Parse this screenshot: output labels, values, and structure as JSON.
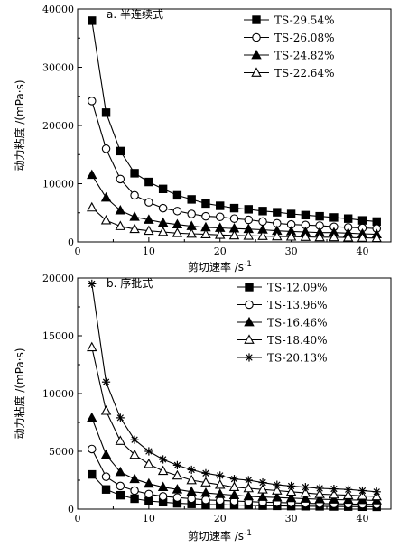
{
  "chart_data": [
    {
      "type": "line",
      "title": "a. 半连续式",
      "xlabel": "剪切速率 /s",
      "xlabel_sup": "-1",
      "ylabel": "动力粘度 /(mPa·s)",
      "xlim": [
        0,
        44
      ],
      "ylim": [
        0,
        40000
      ],
      "xticks": [
        0,
        10,
        20,
        30,
        40
      ],
      "yticks": [
        0,
        10000,
        20000,
        30000,
        40000
      ],
      "legend_position": "top-right",
      "series": [
        {
          "name": "TS-29.54%",
          "marker": "square-filled",
          "x": [
            2,
            4,
            6,
            8,
            10,
            12,
            14,
            16,
            18,
            20,
            22,
            24,
            26,
            28,
            30,
            32,
            34,
            36,
            38,
            40,
            42
          ],
          "y": [
            38000,
            22200,
            15600,
            11800,
            10300,
            9100,
            8000,
            7300,
            6600,
            6200,
            5800,
            5600,
            5300,
            5100,
            4800,
            4600,
            4400,
            4200,
            4000,
            3700,
            3500
          ]
        },
        {
          "name": "TS-26.08%",
          "marker": "circle-open",
          "x": [
            2,
            4,
            6,
            8,
            10,
            12,
            14,
            16,
            18,
            20,
            22,
            24,
            26,
            28,
            30,
            32,
            34,
            36,
            38,
            40,
            42
          ],
          "y": [
            24200,
            16000,
            10800,
            8000,
            6800,
            5800,
            5300,
            4800,
            4400,
            4300,
            4000,
            3800,
            3500,
            3200,
            3000,
            2900,
            2800,
            2600,
            2500,
            2400,
            2300
          ]
        },
        {
          "name": "TS-24.82%",
          "marker": "triangle-filled",
          "x": [
            2,
            4,
            6,
            8,
            10,
            12,
            14,
            16,
            18,
            20,
            22,
            24,
            26,
            28,
            30,
            32,
            34,
            36,
            38,
            40,
            42
          ],
          "y": [
            11500,
            7600,
            5400,
            4300,
            3800,
            3300,
            3000,
            2700,
            2500,
            2400,
            2300,
            2200,
            2100,
            1900,
            1800,
            1700,
            1600,
            1600,
            1500,
            1400,
            1300
          ]
        },
        {
          "name": "TS-22.64%",
          "marker": "triangle-open",
          "x": [
            2,
            4,
            6,
            8,
            10,
            12,
            14,
            16,
            18,
            20,
            22,
            24,
            26,
            28,
            30,
            32,
            34,
            36,
            38,
            40,
            42
          ],
          "y": [
            5900,
            3700,
            2700,
            2200,
            1900,
            1700,
            1500,
            1400,
            1300,
            1200,
            1100,
            1050,
            1000,
            950,
            900,
            850,
            800,
            800,
            750,
            700,
            650
          ]
        }
      ]
    },
    {
      "type": "line",
      "title": "b. 序批式",
      "xlabel": "剪切速率 /s",
      "xlabel_sup": "-1",
      "ylabel": "动力粘度 /(mPa·s)",
      "xlim": [
        0,
        44
      ],
      "ylim": [
        0,
        20000
      ],
      "xticks": [
        0,
        10,
        20,
        30,
        40
      ],
      "yticks": [
        0,
        5000,
        10000,
        15000,
        20000
      ],
      "legend_position": "top-right",
      "series": [
        {
          "name": "TS-12.09%",
          "marker": "square-filled",
          "x": [
            2,
            4,
            6,
            8,
            10,
            12,
            14,
            16,
            18,
            20,
            22,
            24,
            26,
            28,
            30,
            32,
            34,
            36,
            38,
            40,
            42
          ],
          "y": [
            3000,
            1700,
            1200,
            900,
            700,
            600,
            500,
            450,
            400,
            380,
            350,
            330,
            300,
            280,
            260,
            250,
            240,
            230,
            220,
            210,
            200
          ]
        },
        {
          "name": "TS-13.96%",
          "marker": "circle-open",
          "x": [
            2,
            4,
            6,
            8,
            10,
            12,
            14,
            16,
            18,
            20,
            22,
            24,
            26,
            28,
            30,
            32,
            34,
            36,
            38,
            40,
            42
          ],
          "y": [
            5200,
            2800,
            2000,
            1600,
            1300,
            1100,
            1000,
            900,
            800,
            750,
            700,
            650,
            600,
            570,
            540,
            500,
            480,
            460,
            440,
            420,
            400
          ]
        },
        {
          "name": "TS-16.46%",
          "marker": "triangle-filled",
          "x": [
            2,
            4,
            6,
            8,
            10,
            12,
            14,
            16,
            18,
            20,
            22,
            24,
            26,
            28,
            30,
            32,
            34,
            36,
            38,
            40,
            42
          ],
          "y": [
            7900,
            4700,
            3200,
            2600,
            2200,
            1900,
            1700,
            1500,
            1400,
            1300,
            1200,
            1100,
            1050,
            1000,
            950,
            900,
            850,
            820,
            800,
            780,
            750
          ]
        },
        {
          "name": "TS-18.40%",
          "marker": "triangle-open",
          "x": [
            2,
            4,
            6,
            8,
            10,
            12,
            14,
            16,
            18,
            20,
            22,
            24,
            26,
            28,
            30,
            32,
            34,
            36,
            38,
            40,
            42
          ],
          "y": [
            14000,
            8500,
            5900,
            4700,
            3900,
            3300,
            2900,
            2500,
            2300,
            2100,
            1900,
            1800,
            1700,
            1600,
            1500,
            1400,
            1300,
            1250,
            1200,
            1150,
            1100
          ]
        },
        {
          "name": "TS-20.13%",
          "marker": "asterisk",
          "x": [
            2,
            4,
            6,
            8,
            10,
            12,
            14,
            16,
            18,
            20,
            22,
            24,
            26,
            28,
            30,
            32,
            34,
            36,
            38,
            40,
            42
          ],
          "y": [
            19500,
            11000,
            7900,
            6000,
            5000,
            4300,
            3800,
            3400,
            3100,
            2900,
            2600,
            2500,
            2300,
            2100,
            2000,
            1900,
            1800,
            1750,
            1700,
            1600,
            1500
          ]
        }
      ]
    }
  ]
}
